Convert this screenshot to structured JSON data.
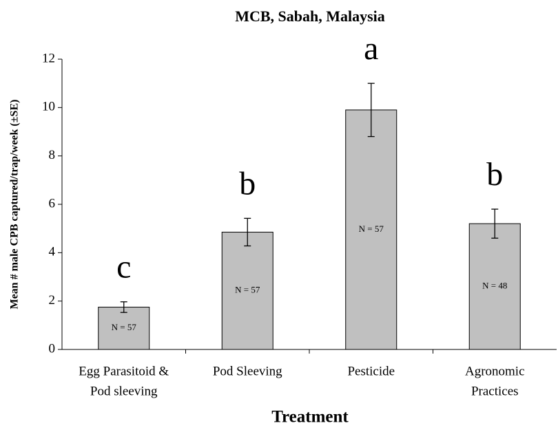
{
  "chart_data": {
    "type": "bar",
    "title": "MCB, Sabah, Malaysia",
    "x_label": "Treatment",
    "y_label": "Mean # male CPB captured/trap/week (±SE)",
    "categories": [
      [
        "Egg Parasitoid &",
        "Pod sleeving"
      ],
      [
        "Pod Sleeving"
      ],
      [
        "Pesticide"
      ],
      [
        "Agronomic",
        "Practices"
      ]
    ],
    "values": [
      1.75,
      4.85,
      9.9,
      5.2
    ],
    "errors": [
      0.22,
      0.57,
      1.1,
      0.6
    ],
    "group_letters": [
      "c",
      "b",
      "a",
      "b"
    ],
    "n_labels": [
      "N = 57",
      "N = 57",
      "N = 57",
      "N = 48"
    ],
    "color": "#c0c0c0",
    "ylim": [
      0,
      12
    ],
    "yticks": [
      0,
      2,
      4,
      6,
      8,
      10,
      12
    ],
    "grid": false
  }
}
